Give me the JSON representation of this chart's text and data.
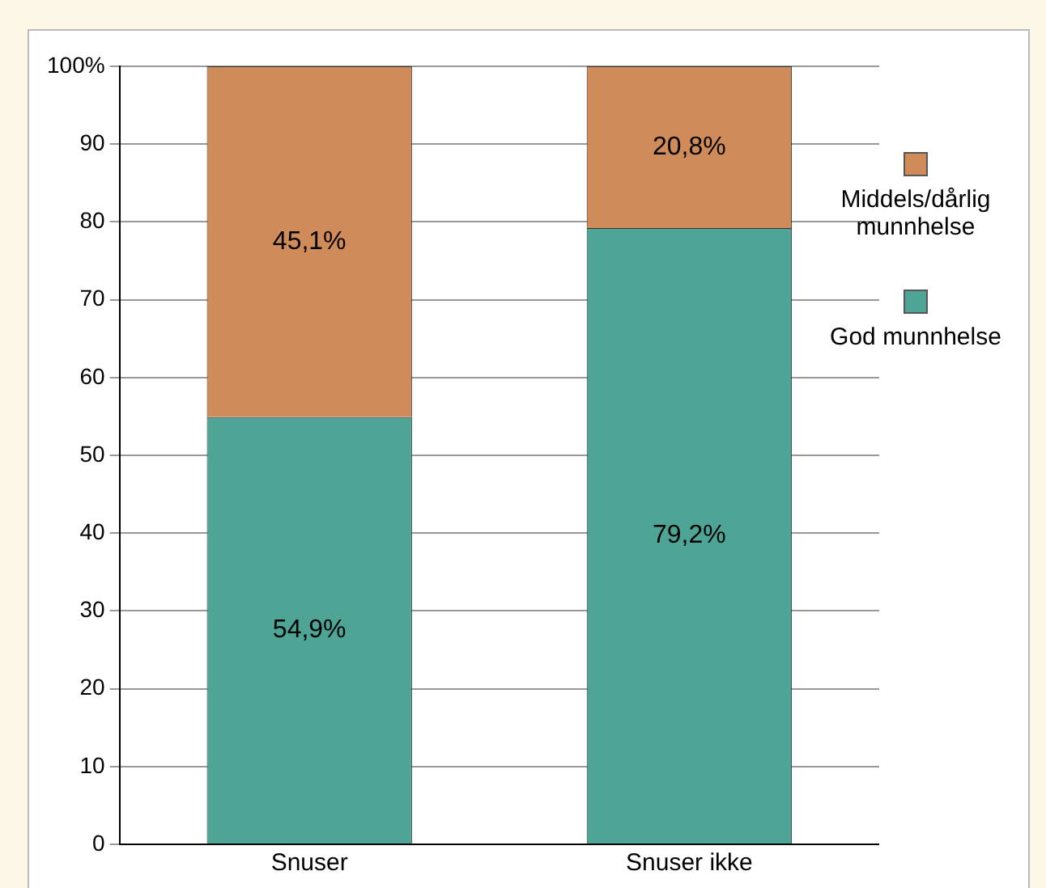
{
  "chart_data": {
    "type": "bar",
    "stacked": true,
    "categories": [
      "Snuser",
      "Snuser ikke"
    ],
    "series": [
      {
        "name": "God munnhelse",
        "color": "#4fa595",
        "values": [
          54.9,
          79.2
        ],
        "value_labels": [
          "54,9%",
          "79,2%"
        ]
      },
      {
        "name": "Middels/dårlig munnhelse",
        "color": "#d08b5b",
        "values": [
          45.1,
          20.8
        ],
        "value_labels": [
          "45,1%",
          "20,8%"
        ]
      }
    ],
    "ylim": [
      0,
      100
    ],
    "yticks": [
      0,
      10,
      20,
      30,
      40,
      50,
      60,
      70,
      80,
      90,
      {
        "value": 100,
        "label": "100%"
      }
    ],
    "grid": "y",
    "legend": "right"
  }
}
